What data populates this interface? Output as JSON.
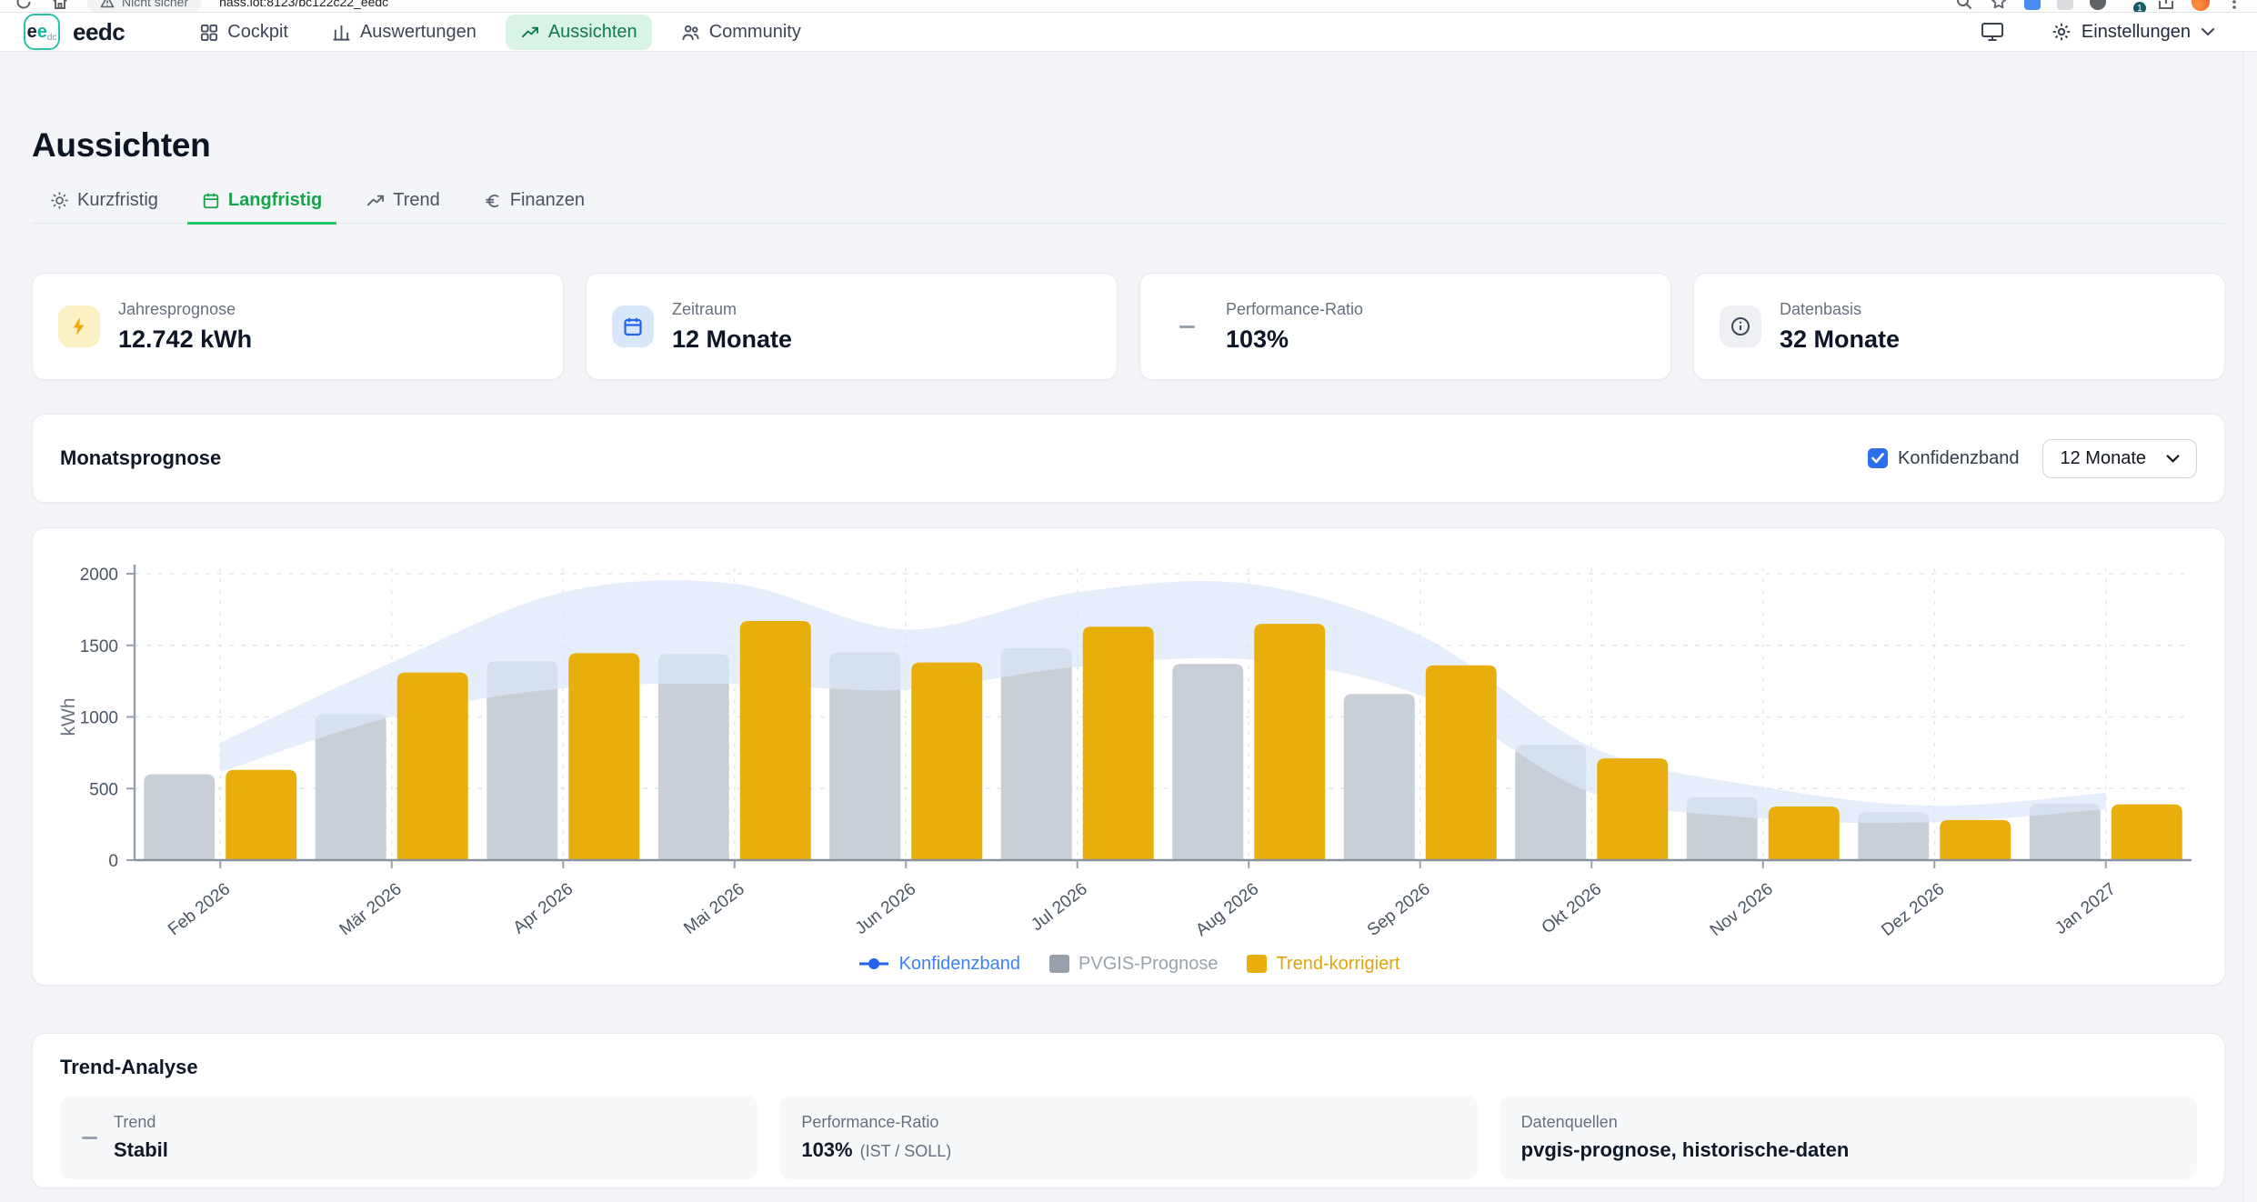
{
  "browser": {
    "security_label": "Nicht sicher",
    "url": "hass.lot:8123/bc122c22_eedc",
    "extension_badge": "1"
  },
  "header": {
    "logo": {
      "e1": "e",
      "e2": "e",
      "sub": "dc"
    },
    "brand": "eedc",
    "nav": [
      {
        "label": "Cockpit",
        "icon": "grid-icon",
        "active": false
      },
      {
        "label": "Auswertungen",
        "icon": "bar-chart-icon",
        "active": false
      },
      {
        "label": "Aussichten",
        "icon": "trending-up-icon",
        "active": true
      },
      {
        "label": "Community",
        "icon": "people-icon",
        "active": false
      }
    ],
    "settings_label": "Einstellungen"
  },
  "page": {
    "title": "Aussichten",
    "tabs": [
      {
        "label": "Kurzfristig",
        "icon": "sun-icon",
        "active": false
      },
      {
        "label": "Langfristig",
        "icon": "calendar-icon",
        "active": true
      },
      {
        "label": "Trend",
        "icon": "trending-up-icon",
        "active": false
      },
      {
        "label": "Finanzen",
        "icon": "euro-icon",
        "active": false
      }
    ],
    "stats": [
      {
        "label": "Jahresprognose",
        "value": "12.742 kWh",
        "icon": "bolt-icon",
        "badge_bg": "#fcf0c5",
        "icon_color": "#f0a90a"
      },
      {
        "label": "Zeitraum",
        "value": "12 Monate",
        "icon": "calendar-icon",
        "badge_bg": "#d9e7fb",
        "icon_color": "#2563eb"
      },
      {
        "label": "Performance-Ratio",
        "value": "103%",
        "icon": "dash-icon",
        "badge_bg": "transparent",
        "icon_color": "#9aa3ad"
      },
      {
        "label": "Datenbasis",
        "value": "32 Monate",
        "icon": "info-icon",
        "badge_bg": "#eef0f3",
        "icon_color": "#3f4754"
      }
    ],
    "chart_panel": {
      "title": "Monatsprognose",
      "confidence_checkbox_label": "Konfidenzband",
      "confidence_checked": true,
      "range_select_value": "12 Monate"
    },
    "trend_panel": {
      "title": "Trend-Analyse",
      "boxes": [
        {
          "label": "Trend",
          "value": "Stabil"
        },
        {
          "label": "Performance-Ratio",
          "value": "103%",
          "suffix": "(IST / SOLL)"
        },
        {
          "label": "Datenquellen",
          "value": "pvgis-prognose, historische-daten"
        }
      ]
    }
  },
  "chart_data": {
    "type": "bar",
    "title": "Monatsprognose",
    "ylabel": "kWh",
    "ylim": [
      0,
      2000
    ],
    "yticks": [
      0,
      500,
      1000,
      1500,
      2000
    ],
    "grid": true,
    "legend_position": "bottom",
    "categories": [
      "Feb 2026",
      "Mär 2026",
      "Apr 2026",
      "Mai 2026",
      "Jun 2026",
      "Jul 2026",
      "Aug 2026",
      "Sep 2026",
      "Okt 2026",
      "Nov 2026",
      "Dez 2026",
      "Jan 2027"
    ],
    "series": [
      {
        "name": "PVGIS-Prognose",
        "type": "bar",
        "color": "#c9cfd6",
        "values": [
          600,
          1020,
          1390,
          1440,
          1450,
          1480,
          1370,
          1160,
          805,
          440,
          335,
          395
        ]
      },
      {
        "name": "Trend-korrigiert",
        "type": "bar",
        "color": "#e8af0c",
        "values": [
          630,
          1310,
          1445,
          1670,
          1380,
          1630,
          1650,
          1360,
          710,
          375,
          280,
          390
        ]
      },
      {
        "name": "Konfidenzband",
        "type": "band",
        "color": "#dbe7f9",
        "opacity": 0.7,
        "upper": [
          820,
          1380,
          1870,
          1930,
          1610,
          1870,
          1930,
          1570,
          790,
          510,
          380,
          470
        ],
        "lower": [
          615,
          1000,
          1200,
          1230,
          1190,
          1350,
          1400,
          1150,
          470,
          290,
          265,
          355
        ]
      }
    ],
    "legend": [
      {
        "label": "Konfidenzband",
        "color": "#3b82f6",
        "marker": "line-dot",
        "swatch": "#2563eb"
      },
      {
        "label": "PVGIS-Prognose",
        "color": "#9aa3ad",
        "marker": "square",
        "swatch": "#98a1ab"
      },
      {
        "label": "Trend-korrigiert",
        "color": "#dda70b",
        "marker": "square",
        "swatch": "#e8af0c"
      }
    ]
  }
}
